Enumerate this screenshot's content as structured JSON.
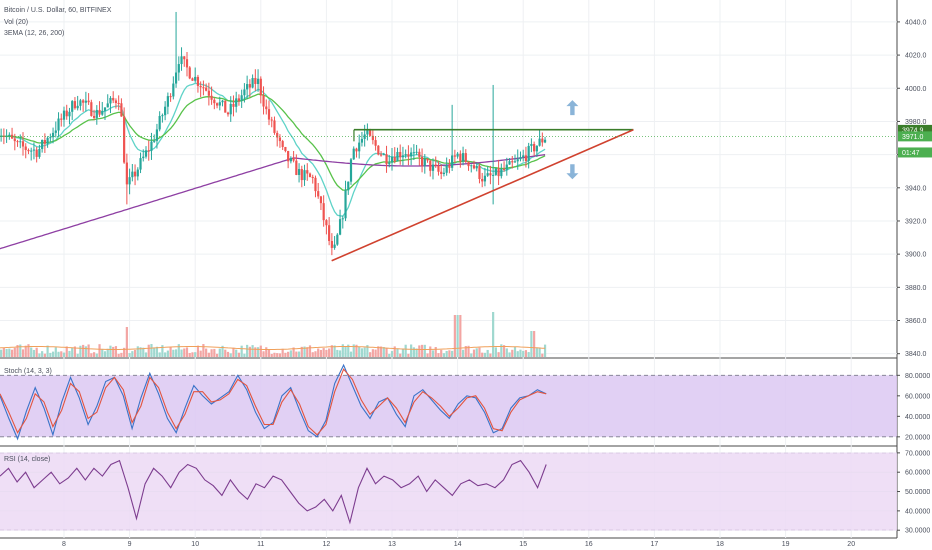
{
  "chart_data": [
    {
      "type": "candlestick",
      "legend": {
        "title": "Bitcoin / U.S. Dollar, 60, BITFINEX",
        "vol": "Vol (20)",
        "ema": "3EMA (12, 26, 200)"
      },
      "ylim": [
        3838,
        4052
      ],
      "y_ticks": [
        3840,
        3860,
        3880,
        3900,
        3920,
        3940,
        3960,
        3980,
        4000,
        4020,
        4040
      ],
      "y_tick_labels": [
        "3840.0",
        "3860.0",
        "3880.0",
        "3900.0",
        "3920.0",
        "3940.0",
        "3960.0",
        "3980.0",
        "4000.0",
        "4020.0",
        "4040.0"
      ],
      "x_tick_labels": [
        "8",
        "9",
        "10",
        "11",
        "12",
        "13",
        "14",
        "15",
        "16",
        "17",
        "18",
        "19",
        "20"
      ],
      "price_tags": [
        {
          "label": "3974.9",
          "value": 3974.9,
          "color": "#3a7d2a",
          "text_color": "#ffffff"
        },
        {
          "label": "3971.0",
          "value": 3971.0,
          "color": "#4caf50",
          "text_color": "#ffffff"
        },
        {
          "label": "01:47",
          "value": 3961.3,
          "color": "#4caf50",
          "text_color": "#ffffff"
        }
      ],
      "key_points": [
        {
          "name": "range_low",
          "day": 12.08,
          "price": 3896
        },
        {
          "name": "range_high",
          "day": 12.4,
          "price": 3975
        },
        {
          "name": "last_close",
          "day": 15.35,
          "price": 3971
        },
        {
          "name": "wick_high",
          "day": 9.7,
          "price": 4046
        },
        {
          "name": "wick_low_day9",
          "day": 8.95,
          "price": 3930
        },
        {
          "name": "wick_low_day14",
          "day": 14.55,
          "price": 3930
        }
      ],
      "trendlines": [
        {
          "name": "resistance",
          "from": {
            "day": 12.42,
            "price": 3975
          },
          "to": {
            "day": 16.68,
            "price": 3975
          },
          "color": "#3a7d2a"
        },
        {
          "name": "ascending-support",
          "from": {
            "day": 12.08,
            "price": 3896
          },
          "to": {
            "day": 16.68,
            "price": 3975
          },
          "color": "#d0422f"
        }
      ],
      "arrows": [
        {
          "name": "up",
          "day": 15.75,
          "price": 3988,
          "direction": "up",
          "color": "#8ab4d8"
        },
        {
          "name": "down",
          "day": 15.75,
          "price": 3950,
          "direction": "down",
          "color": "#8ab4d8"
        }
      ],
      "colors": {
        "up": "#26a69a",
        "down": "#ef5350",
        "ema12": "#5fd3c8",
        "ema26": "#58c24a",
        "ema200": "#8e3fa3"
      }
    },
    {
      "type": "line",
      "title": "Stoch (14, 3, 3)",
      "ylim": [
        13,
        93
      ],
      "y_ticks": [
        20,
        40,
        60,
        80
      ],
      "y_tick_labels": [
        "20.0000",
        "40.0000",
        "60.0000",
        "80.0000"
      ],
      "band": [
        20,
        80
      ],
      "series": [
        {
          "name": "%K",
          "color": "#3b73c8",
          "values": [
            60,
            38,
            18,
            45,
            68,
            48,
            22,
            54,
            78,
            58,
            32,
            50,
            74,
            78,
            60,
            28,
            58,
            82,
            62,
            38,
            24,
            48,
            70,
            60,
            52,
            58,
            64,
            80,
            66,
            44,
            28,
            34,
            60,
            68,
            46,
            26,
            20,
            36,
            72,
            90,
            70,
            50,
            38,
            54,
            58,
            42,
            30,
            60,
            66,
            56,
            46,
            38,
            52,
            60,
            58,
            44,
            24,
            28,
            48,
            58,
            60,
            66,
            62
          ]
        },
        {
          "name": "%D",
          "color": "#e2543f",
          "values": [
            62,
            44,
            24,
            38,
            62,
            54,
            30,
            46,
            72,
            64,
            38,
            44,
            68,
            78,
            66,
            34,
            50,
            78,
            68,
            44,
            28,
            42,
            64,
            64,
            54,
            56,
            62,
            76,
            70,
            50,
            32,
            32,
            54,
            66,
            52,
            30,
            22,
            32,
            64,
            86,
            76,
            56,
            42,
            50,
            58,
            48,
            34,
            54,
            64,
            58,
            50,
            40,
            48,
            58,
            60,
            48,
            28,
            26,
            44,
            56,
            60,
            64,
            62
          ]
        }
      ]
    },
    {
      "type": "line",
      "title": "RSI (14, close)",
      "ylim": [
        27,
        72
      ],
      "y_ticks": [
        30,
        40,
        50,
        60,
        70
      ],
      "y_tick_labels": [
        "30.0000",
        "40.0000",
        "50.0000",
        "60.0000",
        "70.0000"
      ],
      "band": [
        30,
        70
      ],
      "series": [
        {
          "name": "RSI",
          "color": "#7d3d8f",
          "values": [
            58,
            62,
            55,
            60,
            52,
            56,
            60,
            54,
            57,
            62,
            56,
            62,
            58,
            64,
            66,
            52,
            36,
            54,
            62,
            58,
            52,
            60,
            64,
            62,
            56,
            53,
            48,
            56,
            50,
            46,
            54,
            52,
            58,
            56,
            50,
            44,
            40,
            42,
            46,
            40,
            48,
            34,
            52,
            62,
            54,
            58,
            56,
            52,
            54,
            58,
            50,
            56,
            52,
            48,
            54,
            56,
            53,
            54,
            52,
            56,
            64,
            66,
            60,
            52,
            64
          ]
        }
      ]
    }
  ]
}
